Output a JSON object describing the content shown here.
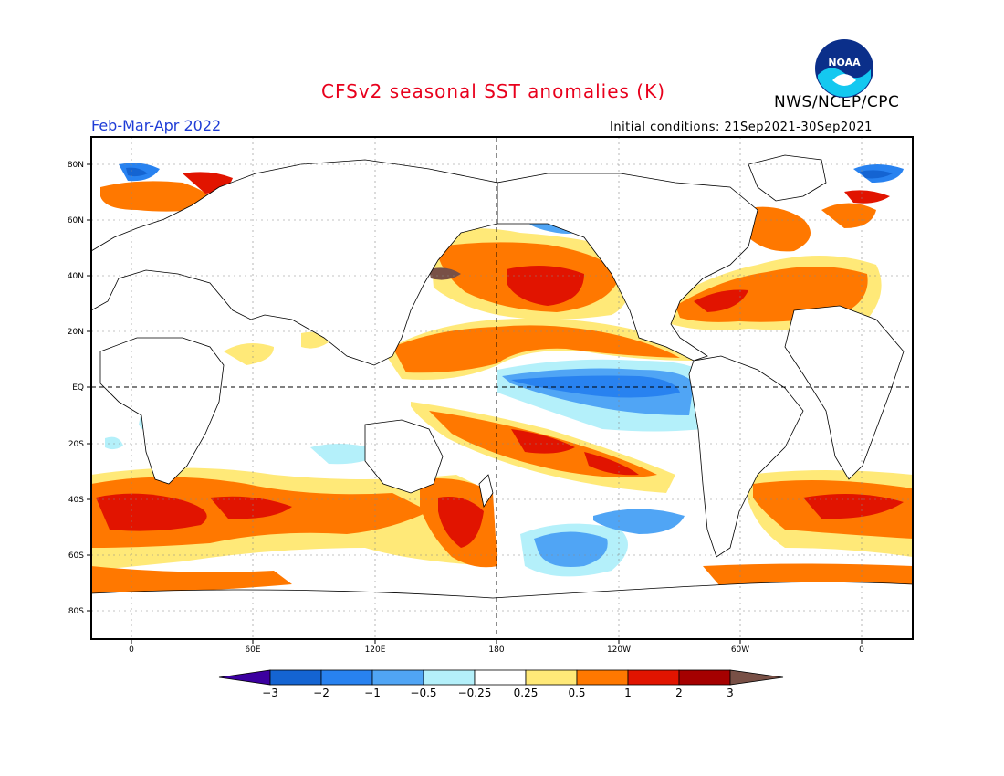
{
  "header": {
    "title": "CFSv2 seasonal SST anomalies (K)",
    "agency": "NWS/NCEP/CPC",
    "period": "Feb-Mar-Apr 2022",
    "initial_conditions": "Initial conditions: 21Sep2021-30Sep2021",
    "logo_text": "NOAA"
  },
  "map": {
    "lat_labels": [
      "80N",
      "60N",
      "40N",
      "20N",
      "EQ",
      "20S",
      "40S",
      "60S",
      "80S"
    ],
    "lon_labels": [
      "0",
      "60E",
      "120E",
      "180",
      "120W",
      "60W",
      "0"
    ]
  },
  "colorbar": {
    "labels": [
      "-3",
      "-2",
      "-1",
      "-0.5",
      "-0.25",
      "0.25",
      "0.5",
      "1",
      "2",
      "3"
    ],
    "colors": [
      "#3c00a0",
      "#1464d2",
      "#2882f0",
      "#50a5f5",
      "#b4f0fa",
      "#ffffff",
      "#ffe978",
      "#ff7800",
      "#e11400",
      "#a50000",
      "#785046"
    ]
  }
}
